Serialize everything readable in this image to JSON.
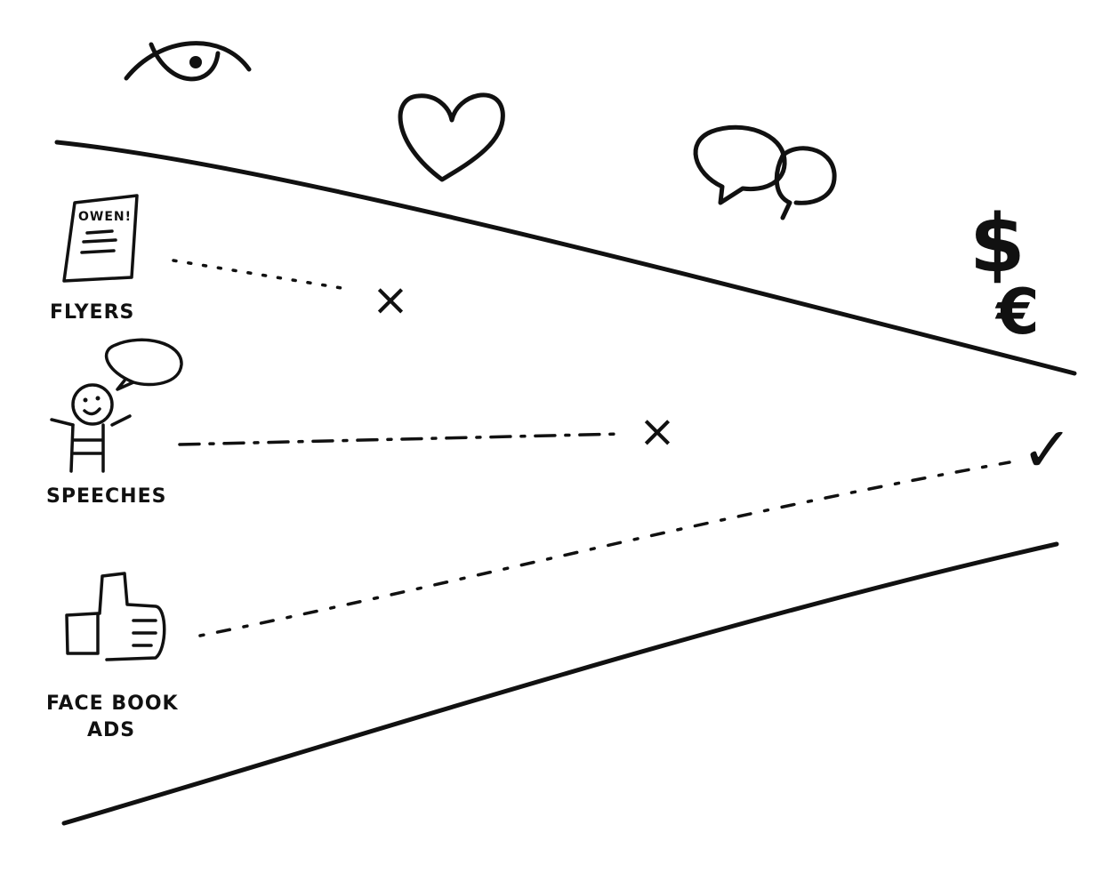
{
  "channels": [
    {
      "label": "FLYERS",
      "flyer_heading": "OWEN!",
      "outcome": "fail"
    },
    {
      "label": "SPEECHES",
      "outcome": "fail"
    },
    {
      "label_line1": "FACE BOOK",
      "label_line2": "ADS",
      "outcome": "success"
    }
  ],
  "funnel_stage_icons": [
    "eye-icon",
    "heart-icon",
    "speech-bubbles-icon",
    "money-icon"
  ],
  "currency_symbols": [
    "$",
    "€"
  ],
  "outcome_marks": {
    "fail": "×",
    "success": "✓"
  }
}
